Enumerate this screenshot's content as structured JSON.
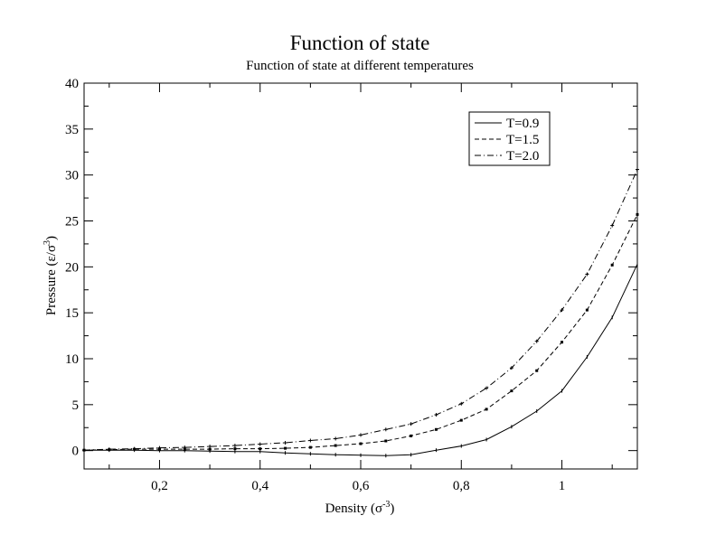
{
  "chart_data": {
    "type": "line",
    "title": "Function of state",
    "subtitle": "Function of state at different temperatures",
    "xlabel_main": "Density (σ",
    "xlabel_sup": "-3",
    "xlabel_end": ")",
    "ylabel_main": "Pressure (ε/σ",
    "ylabel_sup": "3",
    "ylabel_end": ")",
    "xlim": [
      0.05,
      1.15
    ],
    "ylim": [
      -2,
      40
    ],
    "x_ticks": [
      {
        "value": 0.2,
        "label": "0,2"
      },
      {
        "value": 0.4,
        "label": "0,4"
      },
      {
        "value": 0.6,
        "label": "0,6"
      },
      {
        "value": 0.8,
        "label": "0,8"
      },
      {
        "value": 1.0,
        "label": "1"
      }
    ],
    "y_ticks": [
      {
        "value": 0,
        "label": "0"
      },
      {
        "value": 5,
        "label": "5"
      },
      {
        "value": 10,
        "label": "10"
      },
      {
        "value": 15,
        "label": "15"
      },
      {
        "value": 20,
        "label": "20"
      },
      {
        "value": 25,
        "label": "25"
      },
      {
        "value": 30,
        "label": "30"
      },
      {
        "value": 35,
        "label": "35"
      },
      {
        "value": 40,
        "label": "40"
      }
    ],
    "grid": false,
    "legend_position": "top-right",
    "x": [
      0.05,
      0.1,
      0.15,
      0.2,
      0.25,
      0.3,
      0.35,
      0.4,
      0.45,
      0.5,
      0.55,
      0.6,
      0.65,
      0.7,
      0.75,
      0.8,
      0.85,
      0.9,
      0.95,
      1.0,
      1.05,
      1.1,
      1.15
    ],
    "series": [
      {
        "name": "T=0.9",
        "dash": "solid",
        "values": [
          0.05,
          0.05,
          0.05,
          0.0,
          0.0,
          -0.05,
          -0.1,
          -0.1,
          -0.25,
          -0.35,
          -0.45,
          -0.5,
          -0.55,
          -0.45,
          0.05,
          0.5,
          1.2,
          2.6,
          4.3,
          6.5,
          10.2,
          14.5,
          20.3
        ]
      },
      {
        "name": "T=1.5",
        "dash": "dashed",
        "values": [
          0.05,
          0.1,
          0.15,
          0.15,
          0.15,
          0.15,
          0.2,
          0.2,
          0.25,
          0.35,
          0.55,
          0.75,
          1.05,
          1.6,
          2.3,
          3.3,
          4.5,
          6.5,
          8.7,
          11.8,
          15.3,
          20.2,
          25.7
        ]
      },
      {
        "name": "T=2.0",
        "dash": "dashdot",
        "values": [
          0.05,
          0.15,
          0.2,
          0.3,
          0.35,
          0.45,
          0.55,
          0.7,
          0.85,
          1.1,
          1.3,
          1.7,
          2.3,
          2.9,
          3.9,
          5.1,
          6.8,
          9.0,
          11.9,
          15.3,
          19.2,
          24.5,
          30.6
        ]
      }
    ]
  },
  "colors": {
    "ink": "#000000",
    "background": "#ffffff"
  }
}
